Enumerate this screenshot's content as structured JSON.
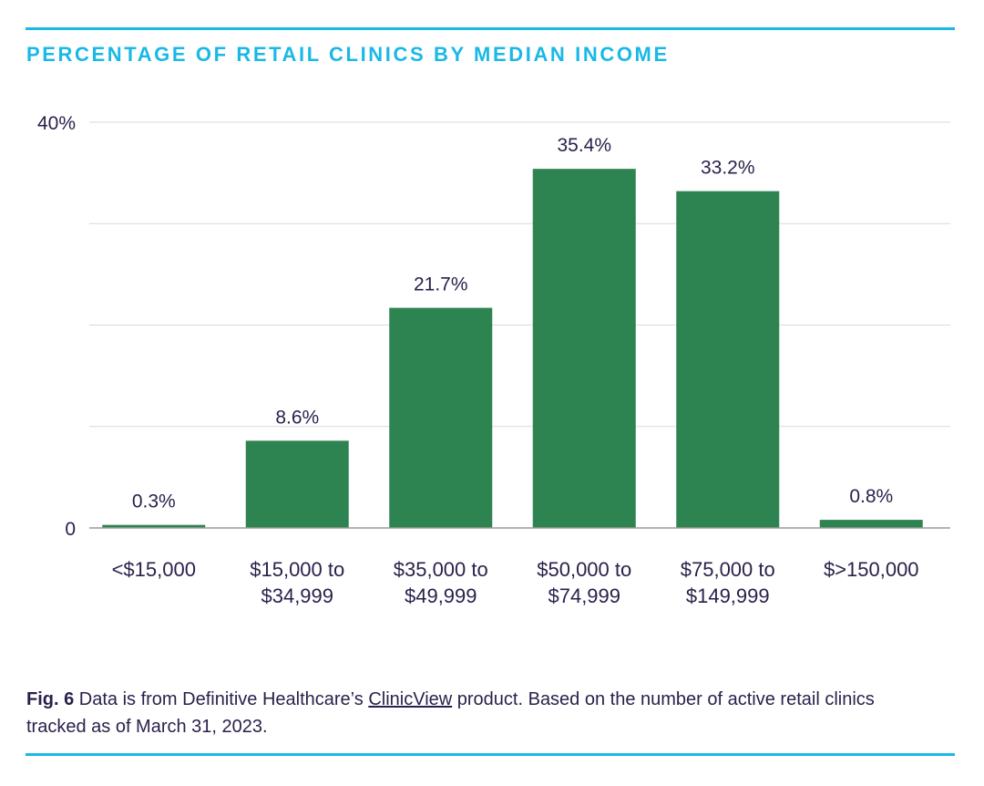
{
  "colors": {
    "accent": "#1ab8e6",
    "bar": "#2e8450",
    "text": "#2a1f4a",
    "grid": "#d9d9d9",
    "axis": "#9a9a9a"
  },
  "caption": {
    "fig": "Fig. 6",
    "before_link": " Data is from Definitive Healthcare’s ",
    "link": "ClinicView",
    "after_link": " product. Based on the number of active retail clinics tracked as of March 31, 2023."
  },
  "chart_data": {
    "type": "bar",
    "title": "PERCENTAGE OF RETAIL CLINICS BY MEDIAN INCOME",
    "xlabel": "",
    "ylabel": "",
    "ylim": [
      0,
      40
    ],
    "grid": true,
    "gridlines": [
      0,
      10,
      20,
      30,
      40
    ],
    "y_tick_labels": [
      {
        "value": 0,
        "label": "0"
      },
      {
        "value": 40,
        "label": "40%"
      }
    ],
    "categories": [
      [
        "<$15,000"
      ],
      [
        "$15,000 to",
        "$34,999"
      ],
      [
        "$35,000 to",
        "$49,999"
      ],
      [
        "$50,000 to",
        "$74,999"
      ],
      [
        "$75,000 to",
        "$149,999"
      ],
      [
        "$>150,000"
      ]
    ],
    "values": [
      0.3,
      8.6,
      21.7,
      35.4,
      33.2,
      0.8
    ],
    "value_labels": [
      "0.3%",
      "8.6%",
      "21.7%",
      "35.4%",
      "33.2%",
      "0.8%"
    ]
  }
}
